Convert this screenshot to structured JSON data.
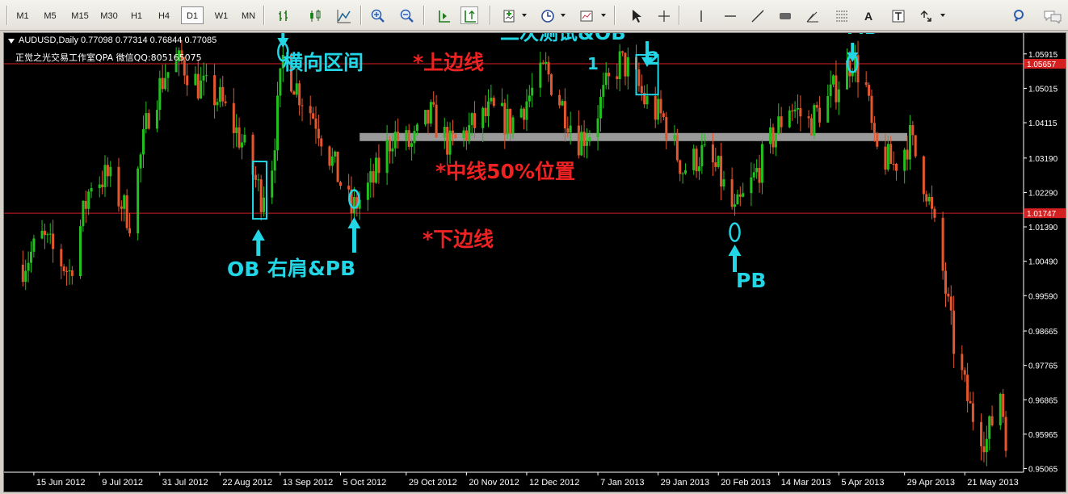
{
  "toolbar": {
    "timeframes": [
      "M1",
      "M5",
      "M15",
      "M30",
      "H1",
      "H4",
      "D1",
      "W1",
      "MN"
    ],
    "active_timeframe": "D1",
    "text_tool": "A"
  },
  "chart": {
    "symbol_line": "AUDUSD,Daily  0.77098 0.77314 0.76844 0.77085",
    "watermark": "正觉之光交易工作室QPA 微信QQ:805165075",
    "upper_line_label": "1.05657",
    "lower_line_label": "1.01747",
    "colors": {
      "background": "#000000",
      "bull": "#22c01f",
      "bear": "#e4572e",
      "level_line": "#d42020",
      "annotation": "#22d6e6",
      "annotation_red": "#ee2222",
      "mid_band": "#9a9a9a"
    }
  },
  "annotations": {
    "pb_top": "PB",
    "range_label": "横向区间",
    "upper_line": "*上边线",
    "second_test": "二次测试&OB",
    "num1": "1",
    "num2": "2",
    "mb": "MB",
    "mid_line": "*中线50%位置",
    "lower_line": "*下边线",
    "ob": "OB",
    "right_shoulder": "右肩&PB",
    "pb_bottom": "PB"
  },
  "chart_data": {
    "type": "candlestick",
    "symbol": "AUDUSD",
    "timeframe": "Daily",
    "y_tick_labels": [
      "1.05915",
      "1.05015",
      "1.04115",
      "1.03190",
      "1.02290",
      "1.01390",
      "1.00490",
      "0.99590",
      "0.98665",
      "0.97765",
      "0.96865",
      "0.95965",
      "0.95065"
    ],
    "x_tick_labels": [
      "15 Jun 2012",
      "9 Jul 2012",
      "31 Jul 2012",
      "22 Aug 2012",
      "13 Sep 2012",
      "5 Oct 2012",
      "29 Oct 2012",
      "20 Nov 2012",
      "12 Dec 2012",
      "7 Jan 2013",
      "29 Jan 2013",
      "20 Feb 2013",
      "14 Mar 2013",
      "5 Apr 2013",
      "29 Apr 2013",
      "21 May 2013"
    ],
    "y_range": [
      0.9497,
      1.0646
    ],
    "horizontal_lines": [
      {
        "value": 1.05657,
        "label": "1.05657"
      },
      {
        "value": 1.01747,
        "label": "1.01747"
      }
    ],
    "mid_band_value": 1.0374,
    "close_path": [
      {
        "date": "2012-06-11",
        "close": 1.004
      },
      {
        "date": "2012-06-18",
        "close": 1.011
      },
      {
        "date": "2012-06-28",
        "close": 1.002
      },
      {
        "date": "2012-07-06",
        "close": 1.026
      },
      {
        "date": "2012-07-12",
        "close": 1.027
      },
      {
        "date": "2012-07-20",
        "close": 1.016
      },
      {
        "date": "2012-07-27",
        "close": 1.044
      },
      {
        "date": "2012-08-02",
        "close": 1.054
      },
      {
        "date": "2012-08-08",
        "close": 1.057
      },
      {
        "date": "2012-08-14",
        "close": 1.051
      },
      {
        "date": "2012-08-22",
        "close": 1.047
      },
      {
        "date": "2012-08-30",
        "close": 1.036
      },
      {
        "date": "2012-09-06",
        "close": 1.022
      },
      {
        "date": "2012-09-10",
        "close": 1.031
      },
      {
        "date": "2012-09-14",
        "close": 1.058
      },
      {
        "date": "2012-09-20",
        "close": 1.049
      },
      {
        "date": "2012-09-26",
        "close": 1.042
      },
      {
        "date": "2012-10-02",
        "close": 1.031
      },
      {
        "date": "2012-10-09",
        "close": 1.018
      },
      {
        "date": "2012-10-17",
        "close": 1.026
      },
      {
        "date": "2012-10-24",
        "close": 1.038
      },
      {
        "date": "2012-10-31",
        "close": 1.035
      },
      {
        "date": "2012-11-07",
        "close": 1.043
      },
      {
        "date": "2012-11-14",
        "close": 1.035
      },
      {
        "date": "2012-11-22",
        "close": 1.04
      },
      {
        "date": "2012-11-29",
        "close": 1.044
      },
      {
        "date": "2012-12-06",
        "close": 1.041
      },
      {
        "date": "2012-12-12",
        "close": 1.047
      },
      {
        "date": "2012-12-19",
        "close": 1.055
      },
      {
        "date": "2012-12-24",
        "close": 1.047
      },
      {
        "date": "2012-12-31",
        "close": 1.037
      },
      {
        "date": "2013-01-04",
        "close": 1.039
      },
      {
        "date": "2013-01-10",
        "close": 1.05
      },
      {
        "date": "2013-01-15",
        "close": 1.057
      },
      {
        "date": "2013-01-19",
        "close": 1.055
      },
      {
        "date": "2013-01-24",
        "close": 1.047
      },
      {
        "date": "2013-01-31",
        "close": 1.042
      },
      {
        "date": "2013-02-07",
        "close": 1.029
      },
      {
        "date": "2013-02-14",
        "close": 1.033
      },
      {
        "date": "2013-02-20",
        "close": 1.028
      },
      {
        "date": "2013-02-26",
        "close": 1.017
      },
      {
        "date": "2013-03-04",
        "close": 1.025
      },
      {
        "date": "2013-03-11",
        "close": 1.036
      },
      {
        "date": "2013-03-18",
        "close": 1.046
      },
      {
        "date": "2013-03-25",
        "close": 1.041
      },
      {
        "date": "2013-04-01",
        "close": 1.047
      },
      {
        "date": "2013-04-10",
        "close": 1.058
      },
      {
        "date": "2013-04-15",
        "close": 1.05
      },
      {
        "date": "2013-04-18",
        "close": 1.034
      },
      {
        "date": "2013-04-25",
        "close": 1.03
      },
      {
        "date": "2013-05-01",
        "close": 1.037
      },
      {
        "date": "2013-05-07",
        "close": 1.024
      },
      {
        "date": "2013-05-13",
        "close": 1.002
      },
      {
        "date": "2013-05-17",
        "close": 0.983
      },
      {
        "date": "2013-05-23",
        "close": 0.966
      },
      {
        "date": "2013-05-29",
        "close": 0.958
      },
      {
        "date": "2013-06-03",
        "close": 0.971
      },
      {
        "date": "2013-06-06",
        "close": 0.954
      }
    ],
    "last_bar": {
      "open": 0.77098,
      "high": 0.77314,
      "low": 0.76844,
      "close": 0.77085
    }
  }
}
